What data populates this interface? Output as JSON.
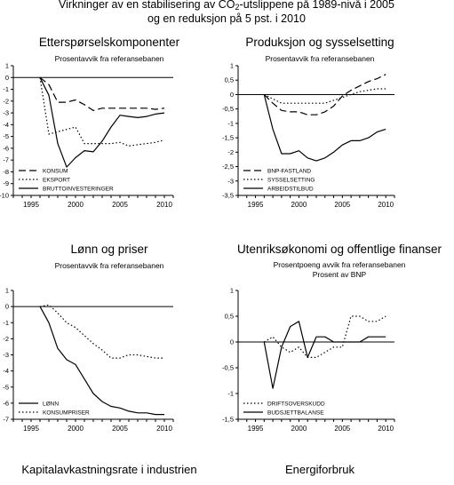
{
  "main_title": {
    "line1_a": "Virkninger av en stabilisering av CO",
    "line1_sub": "2",
    "line1_b": "-utslippene på 1989-nivå i 2005",
    "line2": "og en reduksjon på 5 pst. i 2010"
  },
  "bottom_titles": [
    "Kapitalavkastningsrate i industrien",
    "Energiforbruk"
  ],
  "chart_data": [
    {
      "type": "line",
      "title": "Etterspørselskomponenter",
      "subtitle": "Prosentavvik fra referansebanen",
      "subtitle2": "",
      "xlim": [
        1993,
        2011
      ],
      "ylim": [
        -10,
        1
      ],
      "yticks": [
        1,
        0,
        -1,
        -2,
        -3,
        -4,
        -5,
        -6,
        -7,
        -8,
        -9,
        -10
      ],
      "ytick_labels": [
        "1",
        "0",
        "-1",
        "-2",
        "-3",
        "-4",
        "-5",
        "-6",
        "-7",
        "-8",
        "-9",
        "-10"
      ],
      "xticks": [
        1995,
        2000,
        2005,
        2010
      ],
      "legend_placement": "bottom-left",
      "series": [
        {
          "name": "KONSUM",
          "dash": "8,4",
          "x": [
            1996,
            1997,
            1998,
            1999,
            2000,
            2001,
            2002,
            2003,
            2004,
            2005,
            2006,
            2007,
            2008,
            2009,
            2010
          ],
          "y": [
            0,
            -0.6,
            -2.1,
            -2.1,
            -1.9,
            -2.3,
            -2.8,
            -2.6,
            -2.6,
            -2.6,
            -2.6,
            -2.6,
            -2.6,
            -2.7,
            -2.6
          ]
        },
        {
          "name": "EKSPORT",
          "dash": "1.5,2.5",
          "x": [
            1996,
            1997,
            1998,
            1999,
            2000,
            2001,
            2002,
            2003,
            2004,
            2005,
            2006,
            2007,
            2008,
            2009,
            2010
          ],
          "y": [
            0,
            -4.8,
            -4.6,
            -4.4,
            -4.2,
            -5.6,
            -5.6,
            -5.6,
            -5.6,
            -5.5,
            -5.8,
            -5.7,
            -5.6,
            -5.5,
            -5.3
          ]
        },
        {
          "name": "BRUTTOINVESTERINGER",
          "dash": "",
          "x": [
            1996,
            1997,
            1998,
            1999,
            2000,
            2001,
            2002,
            2003,
            2004,
            2005,
            2006,
            2007,
            2008,
            2009,
            2010
          ],
          "y": [
            0,
            -1.5,
            -5.6,
            -7.6,
            -6.8,
            -6.2,
            -6.3,
            -5.4,
            -4.2,
            -3.2,
            -3.3,
            -3.4,
            -3.3,
            -3.1,
            -3.0
          ]
        }
      ]
    },
    {
      "type": "line",
      "title": "Produksjon og sysselsetting",
      "subtitle": "Prosentavvik fra referansebanen",
      "subtitle2": "",
      "xlim": [
        1993,
        2011
      ],
      "ylim": [
        -3.5,
        1
      ],
      "yticks": [
        1,
        0.5,
        0,
        -0.5,
        -1,
        -1.5,
        -2,
        -2.5,
        -3,
        -3.5
      ],
      "ytick_labels": [
        "1",
        "0,5",
        "0",
        "-0,5",
        "-1",
        "-1,5",
        "-2",
        "-2,5",
        "-3",
        "-3,5"
      ],
      "xticks": [
        1995,
        2000,
        2005,
        2010
      ],
      "legend_placement": "bottom-left",
      "series": [
        {
          "name": "BNP-FASTLAND",
          "dash": "8,4",
          "x": [
            1996,
            1997,
            1998,
            1999,
            2000,
            2001,
            2002,
            2003,
            2004,
            2005,
            2006,
            2007,
            2008,
            2009,
            2010
          ],
          "y": [
            0,
            -0.3,
            -0.55,
            -0.6,
            -0.6,
            -0.7,
            -0.7,
            -0.6,
            -0.4,
            -0.05,
            0.15,
            0.3,
            0.45,
            0.55,
            0.7
          ]
        },
        {
          "name": "SYSSELSETTING",
          "dash": "1.5,2.5",
          "x": [
            1996,
            1997,
            1998,
            1999,
            2000,
            2001,
            2002,
            2003,
            2004,
            2005,
            2006,
            2007,
            2008,
            2009,
            2010
          ],
          "y": [
            0,
            -0.15,
            -0.3,
            -0.3,
            -0.3,
            -0.3,
            -0.3,
            -0.3,
            -0.2,
            -0.1,
            0.0,
            0.1,
            0.15,
            0.2,
            0.2
          ]
        },
        {
          "name": "ARBEIDSTILBUD",
          "dash": "",
          "x": [
            1996,
            1997,
            1998,
            1999,
            2000,
            2001,
            2002,
            2003,
            2004,
            2005,
            2006,
            2007,
            2008,
            2009,
            2010
          ],
          "y": [
            0,
            -1.2,
            -2.05,
            -2.05,
            -1.95,
            -2.2,
            -2.3,
            -2.2,
            -2.0,
            -1.75,
            -1.6,
            -1.6,
            -1.5,
            -1.3,
            -1.2
          ]
        }
      ]
    },
    {
      "type": "line",
      "title": "Lønn og priser",
      "subtitle": "Prosentavvik fra referansebanen",
      "subtitle2": "",
      "xlim": [
        1993,
        2011
      ],
      "ylim": [
        -7,
        1
      ],
      "yticks": [
        1,
        0,
        -1,
        -2,
        -3,
        -4,
        -5,
        -6,
        -7
      ],
      "ytick_labels": [
        "1",
        "0",
        "-1",
        "-2",
        "-3",
        "-4",
        "-5",
        "-6",
        "-7"
      ],
      "xticks": [
        1995,
        2000,
        2005,
        2010
      ],
      "legend_placement": "bottom-left",
      "series": [
        {
          "name": "LØNN",
          "dash": "",
          "x": [
            1996,
            1997,
            1998,
            1999,
            2000,
            2001,
            2002,
            2003,
            2004,
            2005,
            2006,
            2007,
            2008,
            2009,
            2010
          ],
          "y": [
            0,
            -1.0,
            -2.6,
            -3.3,
            -3.6,
            -4.5,
            -5.4,
            -5.9,
            -6.2,
            -6.3,
            -6.5,
            -6.6,
            -6.6,
            -6.7,
            -6.7
          ]
        },
        {
          "name": "KONSUMPRISER",
          "dash": "1.5,2.5",
          "x": [
            1996,
            1997,
            1998,
            1999,
            2000,
            2001,
            2002,
            2003,
            2004,
            2005,
            2006,
            2007,
            2008,
            2009,
            2010
          ],
          "y": [
            0,
            0.1,
            -0.4,
            -1.0,
            -1.3,
            -1.8,
            -2.3,
            -2.7,
            -3.2,
            -3.2,
            -3.0,
            -3.0,
            -3.1,
            -3.2,
            -3.2
          ]
        }
      ]
    },
    {
      "type": "line",
      "title": "Utenriksøkonomi og offentlige finanser",
      "subtitle": "Prosentpoeng avvik fra referansebanen",
      "subtitle2": "Prosent av BNP",
      "xlim": [
        1993,
        2011
      ],
      "ylim": [
        -1.5,
        1
      ],
      "yticks": [
        1,
        0.5,
        0,
        -0.5,
        -1,
        -1.5
      ],
      "ytick_labels": [
        "1",
        "0,5",
        "0",
        "-0,5",
        "-1",
        "-1,5"
      ],
      "xticks": [
        1995,
        2000,
        2005,
        2010
      ],
      "legend_placement": "bottom-left",
      "series": [
        {
          "name": "DRIFTSOVERSKUDD",
          "dash": "1.5,2.5",
          "x": [
            1996,
            1997,
            1998,
            1999,
            2000,
            2001,
            2002,
            2003,
            2004,
            2005,
            2006,
            2007,
            2008,
            2009,
            2010
          ],
          "y": [
            0,
            0.1,
            -0.1,
            -0.2,
            -0.1,
            -0.3,
            -0.3,
            -0.2,
            -0.1,
            -0.1,
            0.5,
            0.5,
            0.4,
            0.4,
            0.5
          ]
        },
        {
          "name": "BUDSJETTBALANSE",
          "dash": "",
          "x": [
            1996,
            1997,
            1998,
            1999,
            2000,
            2001,
            2002,
            2003,
            2004,
            2005,
            2006,
            2007,
            2008,
            2009,
            2010
          ],
          "y": [
            0,
            -0.9,
            -0.1,
            0.3,
            0.4,
            -0.3,
            0.1,
            0.1,
            0.0,
            0.0,
            0.0,
            0.0,
            0.1,
            0.1,
            0.1
          ]
        }
      ]
    }
  ]
}
